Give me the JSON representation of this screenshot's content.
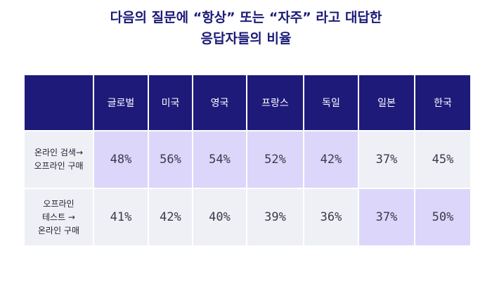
{
  "title": {
    "line1": "다음의 질문에 “항상” 또는 “자주” 라고 대답한",
    "line2": "응답자들의 비율"
  },
  "colors": {
    "header_bg": "#1e1a7a",
    "highlight": "#dcd6fa",
    "plain": "#eef0f6",
    "title": "#1a1a78"
  },
  "chart_data": {
    "type": "table",
    "columns": [
      "글로벌",
      "미국",
      "영국",
      "프랑스",
      "독일",
      "일본",
      "한국"
    ],
    "rows": [
      {
        "label_lines": [
          "온라인 검색→",
          "오프라인 구매"
        ],
        "values": [
          "48%",
          "56%",
          "54%",
          "52%",
          "42%",
          "37%",
          "45%"
        ],
        "highlighted": [
          true,
          true,
          true,
          true,
          true,
          false,
          false
        ]
      },
      {
        "label_lines": [
          "오프라인",
          "테스트 →",
          "온라인 구매"
        ],
        "values": [
          "41%",
          "42%",
          "40%",
          "39%",
          "36%",
          "37%",
          "50%"
        ],
        "highlighted": [
          false,
          false,
          false,
          false,
          false,
          true,
          true
        ]
      }
    ]
  }
}
